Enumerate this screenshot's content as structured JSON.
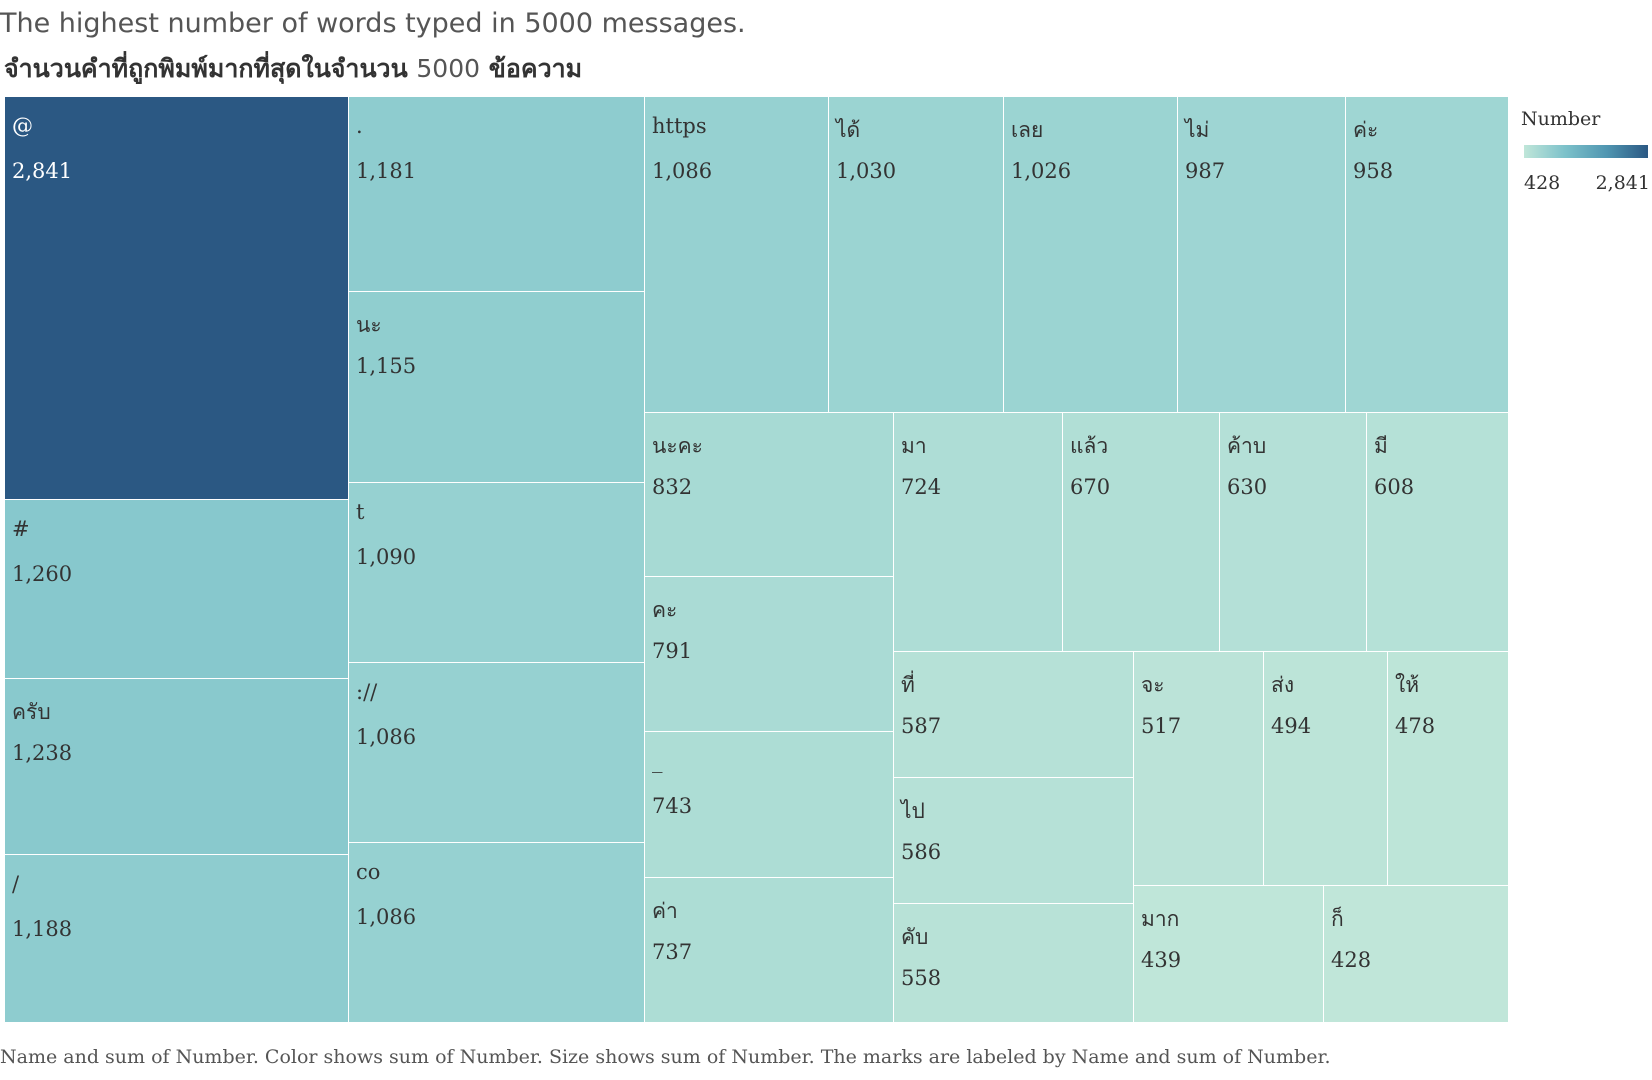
{
  "title": "The highest number of words typed in 5000 messages.",
  "subtitle": {
    "part1": "จำนวนคำที่ถูกพิมพ์มากที่สุดในจำนวน",
    "num": "5000",
    "part2": "ข้อความ"
  },
  "legend": {
    "title": "Number",
    "min_label": "428",
    "max_label": "2,841",
    "color_min": "#c0e6d9",
    "color_max": "#2b5883"
  },
  "caption": "Name and sum of Number.  Color shows sum of Number.  Size shows sum of Number.  The marks are labeled by Name and sum of Number.",
  "chart_data": {
    "type": "treemap",
    "min": 428,
    "max": 2841,
    "items": [
      {
        "name": "@",
        "value": 2841,
        "label": "2,841"
      },
      {
        "name": "#",
        "value": 1260,
        "label": "1,260"
      },
      {
        "name": "ครับ",
        "value": 1238,
        "label": "1,238"
      },
      {
        "name": "/",
        "value": 1188,
        "label": "1,188"
      },
      {
        "name": ".",
        "value": 1181,
        "label": "1,181"
      },
      {
        "name": "นะ",
        "value": 1155,
        "label": "1,155"
      },
      {
        "name": "t",
        "value": 1090,
        "label": "1,090"
      },
      {
        "name": "://",
        "value": 1086,
        "label": "1,086"
      },
      {
        "name": "co",
        "value": 1086,
        "label": "1,086"
      },
      {
        "name": "https",
        "value": 1086,
        "label": "1,086"
      },
      {
        "name": "ได้",
        "value": 1030,
        "label": "1,030"
      },
      {
        "name": "เลย",
        "value": 1026,
        "label": "1,026"
      },
      {
        "name": "ไม่",
        "value": 987,
        "label": "987"
      },
      {
        "name": "ค่ะ",
        "value": 958,
        "label": "958"
      },
      {
        "name": "นะคะ",
        "value": 832,
        "label": "832"
      },
      {
        "name": "คะ",
        "value": 791,
        "label": "791"
      },
      {
        "name": "_",
        "value": 743,
        "label": "743"
      },
      {
        "name": "ค่า",
        "value": 737,
        "label": "737"
      },
      {
        "name": "มา",
        "value": 724,
        "label": "724"
      },
      {
        "name": "แล้ว",
        "value": 670,
        "label": "670"
      },
      {
        "name": "ค้าบ",
        "value": 630,
        "label": "630"
      },
      {
        "name": "มี",
        "value": 608,
        "label": "608"
      },
      {
        "name": "ที่",
        "value": 587,
        "label": "587"
      },
      {
        "name": "ไป",
        "value": 586,
        "label": "586"
      },
      {
        "name": "คับ",
        "value": 558,
        "label": "558"
      },
      {
        "name": "จะ",
        "value": 517,
        "label": "517"
      },
      {
        "name": "ส่ง",
        "value": 494,
        "label": "494"
      },
      {
        "name": "ให้",
        "value": 478,
        "label": "478"
      },
      {
        "name": "มาก",
        "value": 439,
        "label": "439"
      },
      {
        "name": "ก็",
        "value": 428,
        "label": "428"
      }
    ]
  }
}
